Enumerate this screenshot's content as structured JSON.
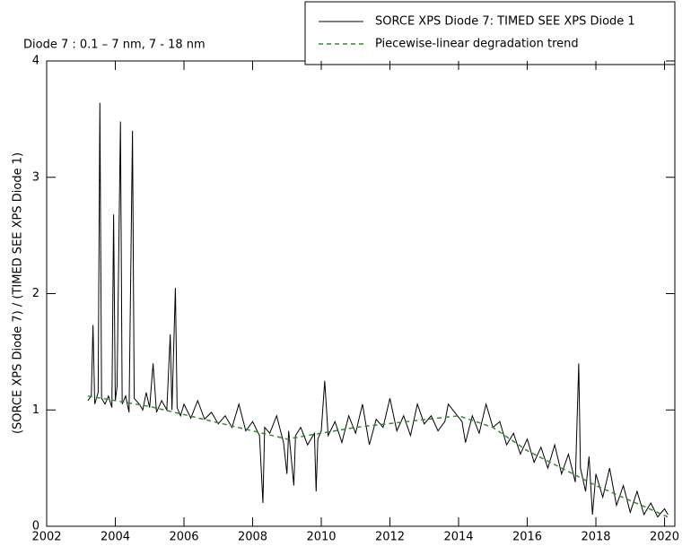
{
  "chart_data": {
    "type": "line",
    "title": "Diode 7 : 0.1 – 7 nm, 7 - 18 nm",
    "y_label": "(SORCE XPS Diode 7) / (TIMED SEE XPS Diode 1)",
    "xlim": [
      2002,
      2020.3
    ],
    "ylim": [
      0,
      4
    ],
    "xticks": [
      2002,
      2004,
      2006,
      2008,
      2010,
      2012,
      2014,
      2016,
      2018,
      2020
    ],
    "yticks": [
      0,
      1,
      2,
      3,
      4
    ],
    "legend": "upper right",
    "series": [
      {
        "name": "SORCE XPS Diode 7: TIMED SEE XPS Diode 1",
        "color": "#000000",
        "style": "solid",
        "x": [
          2003.2,
          2003.3,
          2003.35,
          2003.4,
          2003.5,
          2003.55,
          2003.6,
          2003.7,
          2003.8,
          2003.9,
          2003.95,
          2004.0,
          2004.05,
          2004.15,
          2004.2,
          2004.3,
          2004.4,
          2004.5,
          2004.55,
          2004.7,
          2004.8,
          2004.9,
          2005.0,
          2005.1,
          2005.2,
          2005.35,
          2005.5,
          2005.6,
          2005.65,
          2005.75,
          2005.8,
          2005.9,
          2006.0,
          2006.2,
          2006.4,
          2006.6,
          2006.8,
          2007.0,
          2007.2,
          2007.4,
          2007.6,
          2007.8,
          2008.0,
          2008.2,
          2008.3,
          2008.35,
          2008.5,
          2008.7,
          2008.9,
          2009.0,
          2009.05,
          2009.2,
          2009.25,
          2009.4,
          2009.6,
          2009.8,
          2009.85,
          2009.9,
          2010.0,
          2010.1,
          2010.2,
          2010.4,
          2010.6,
          2010.8,
          2011.0,
          2011.2,
          2011.4,
          2011.6,
          2011.8,
          2012.0,
          2012.2,
          2012.4,
          2012.6,
          2012.8,
          2013.0,
          2013.2,
          2013.4,
          2013.6,
          2013.7,
          2014.1,
          2014.2,
          2014.4,
          2014.6,
          2014.8,
          2015.0,
          2015.2,
          2015.4,
          2015.6,
          2015.8,
          2016.0,
          2016.2,
          2016.4,
          2016.6,
          2016.8,
          2017.0,
          2017.2,
          2017.4,
          2017.5,
          2017.55,
          2017.7,
          2017.8,
          2017.9,
          2018.0,
          2018.2,
          2018.4,
          2018.6,
          2018.8,
          2019.0,
          2019.2,
          2019.4,
          2019.6,
          2019.8,
          2020.0,
          2020.1
        ],
        "values": [
          1.08,
          1.12,
          1.73,
          1.05,
          1.15,
          3.64,
          1.1,
          1.05,
          1.12,
          1.02,
          2.68,
          1.08,
          1.2,
          3.48,
          1.05,
          1.12,
          0.98,
          3.4,
          1.1,
          1.05,
          1.0,
          1.15,
          1.02,
          1.4,
          0.98,
          1.08,
          1.0,
          1.65,
          1.0,
          2.05,
          1.02,
          0.95,
          1.05,
          0.93,
          1.08,
          0.92,
          0.98,
          0.88,
          0.95,
          0.85,
          1.05,
          0.82,
          0.9,
          0.78,
          0.2,
          0.85,
          0.8,
          0.95,
          0.72,
          0.45,
          0.82,
          0.35,
          0.78,
          0.85,
          0.7,
          0.8,
          0.3,
          0.75,
          0.82,
          1.25,
          0.78,
          0.9,
          0.72,
          0.95,
          0.8,
          1.05,
          0.7,
          0.92,
          0.85,
          1.1,
          0.82,
          0.95,
          0.78,
          1.05,
          0.88,
          0.95,
          0.82,
          0.9,
          1.05,
          0.9,
          0.72,
          0.95,
          0.8,
          1.05,
          0.85,
          0.9,
          0.7,
          0.8,
          0.62,
          0.75,
          0.55,
          0.68,
          0.5,
          0.7,
          0.45,
          0.62,
          0.38,
          1.4,
          0.5,
          0.3,
          0.6,
          0.1,
          0.45,
          0.25,
          0.5,
          0.18,
          0.35,
          0.12,
          0.3,
          0.1,
          0.2,
          0.08,
          0.15,
          0.1
        ]
      },
      {
        "name": "Piecewise-linear degradation trend",
        "color": "#2e8b2e",
        "style": "dashed",
        "x": [
          2003.2,
          2005,
          2009,
          2011,
          2014,
          2015,
          2016,
          2018,
          2020.1
        ],
        "values": [
          1.12,
          1.03,
          0.75,
          0.85,
          0.95,
          0.85,
          0.65,
          0.35,
          0.08
        ]
      }
    ]
  }
}
